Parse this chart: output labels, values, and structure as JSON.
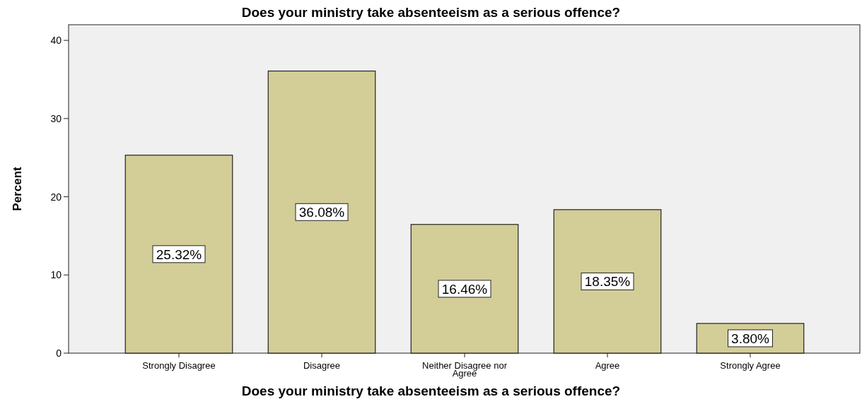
{
  "chart_data": {
    "type": "bar",
    "title": "Does your ministry take absenteeism as a serious offence?",
    "xlabel": "Does your ministry take absenteeism as a serious offence?",
    "ylabel": "Percent",
    "categories": [
      "Strongly Disagree",
      "Disagree",
      "Neither Disagree nor Agree",
      "Agree",
      "Strongly Agree"
    ],
    "values": [
      25.32,
      36.08,
      16.46,
      18.35,
      3.8
    ],
    "value_labels": [
      "25.32%",
      "36.08%",
      "16.46%",
      "18.35%",
      "3.80%"
    ],
    "color": "#d3ce97",
    "ylim": [
      0,
      42
    ],
    "yticks": [
      0,
      10,
      20,
      30,
      40
    ],
    "grid": false
  }
}
